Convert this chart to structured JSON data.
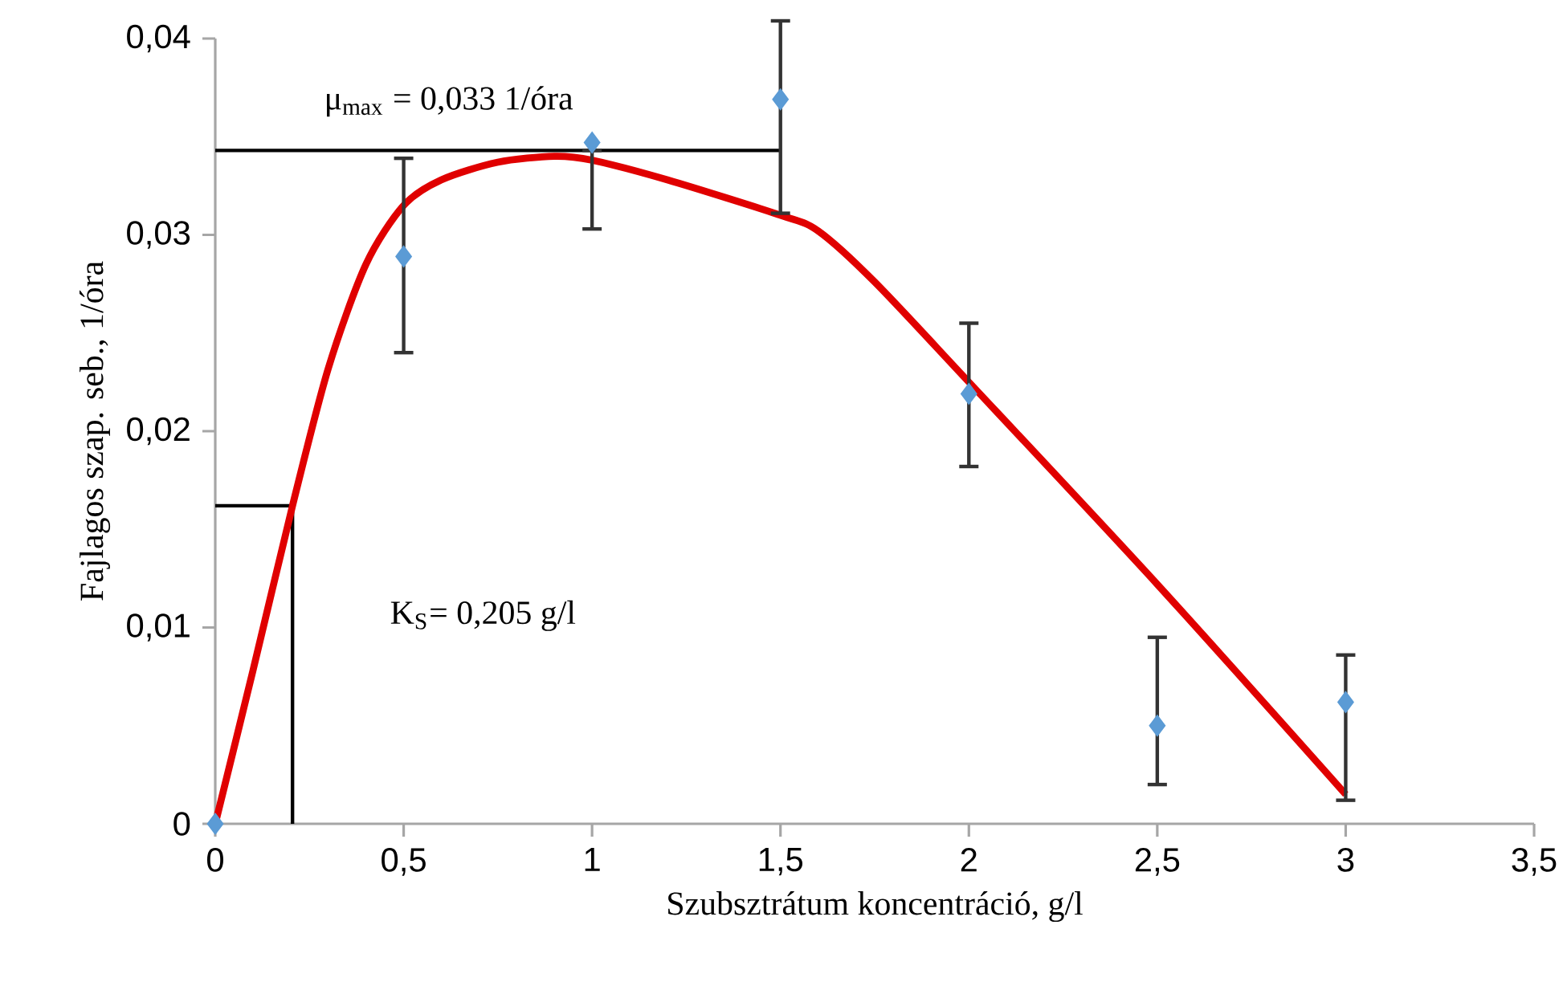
{
  "chart_data": {
    "type": "scatter",
    "xlabel": "Szubsztrátum koncentráció, g/l",
    "ylabel": "Fajlagos szap. seb., 1/óra",
    "xlim": [
      0,
      3.5
    ],
    "ylim": [
      0,
      0.04
    ],
    "xticks": [
      0,
      {
        "value": 0.5,
        "label": "0,5"
      },
      1,
      {
        "value": 1.5,
        "label": "1,5"
      },
      2,
      {
        "value": 2.5,
        "label": "2,5"
      },
      3,
      {
        "value": 3.5,
        "label": "3,5"
      }
    ],
    "yticks": [
      0,
      {
        "value": 0.01,
        "label": "0,01"
      },
      {
        "value": 0.02,
        "label": "0,02"
      },
      {
        "value": 0.03,
        "label": "0,03"
      },
      {
        "value": 0.04,
        "label": "0,04"
      }
    ],
    "series": [
      {
        "type": "line",
        "color": "#000000",
        "x": [
          0,
          1.5
        ],
        "values": [
          0.0343,
          0.0343
        ]
      },
      {
        "type": "line",
        "color": "#000000",
        "x": [
          0,
          0.205,
          0.205
        ],
        "values": [
          0.0162,
          0.0162,
          0
        ]
      },
      {
        "type": "line",
        "color": "#e00000",
        "x": [
          0,
          0.1,
          0.205,
          0.3,
          0.4,
          0.5,
          0.6,
          0.75,
          0.9,
          1,
          1.2,
          1.5,
          1.6,
          1.75,
          2,
          2.5,
          3
        ],
        "values": [
          0,
          0.0078,
          0.0162,
          0.0232,
          0.0285,
          0.0315,
          0.0328,
          0.0337,
          0.034,
          0.0338,
          0.0328,
          0.031,
          0.0302,
          0.0276,
          0.0225,
          0.0122,
          0.0015
        ]
      },
      {
        "color": "#5b9bd5",
        "marker": "diamond",
        "x": [
          0,
          0.5,
          1,
          1.5,
          2,
          2.5,
          3
        ],
        "values": [
          0,
          0.0289,
          0.0347,
          0.0369,
          0.0219,
          0.005,
          0.0062
        ],
        "errors": [
          null,
          [
            0.024,
            0.0339
          ],
          [
            0.0303,
            0.0343
          ],
          [
            0.0311,
            0.0409
          ],
          [
            0.0182,
            0.0255
          ],
          [
            0.002,
            0.0095
          ],
          [
            0.0012,
            0.0086
          ]
        ]
      }
    ],
    "annotations": [
      "μ$_{max}$ = 0,033 1/óra",
      "K$_{S}$= 0,205 g/l"
    ]
  }
}
